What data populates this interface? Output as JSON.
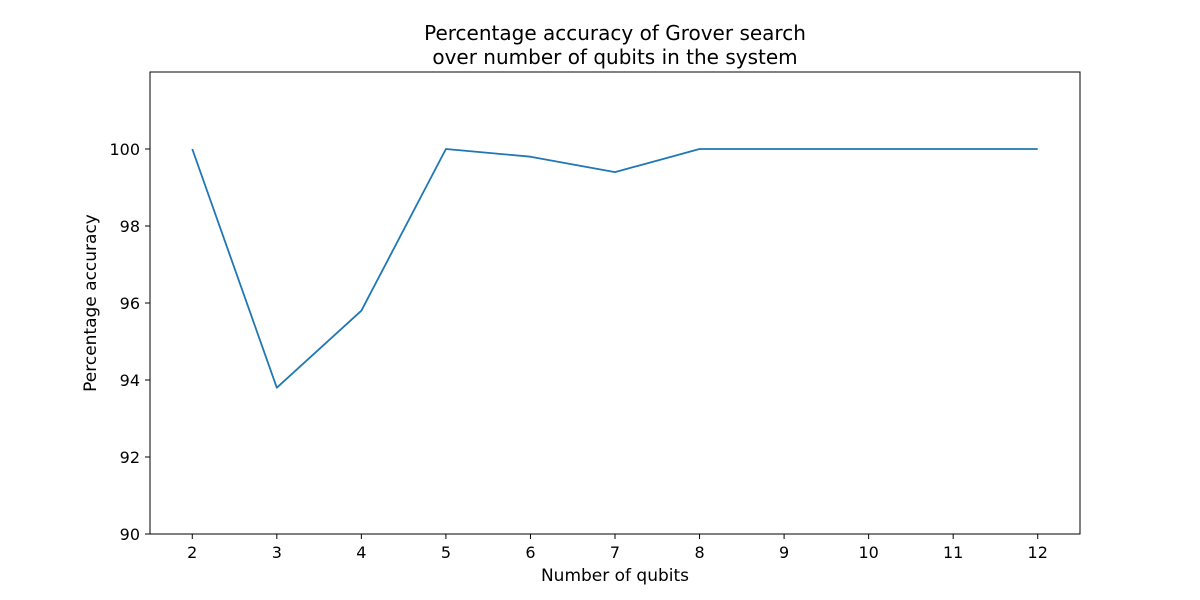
{
  "chart_data": {
    "type": "line",
    "title_lines": [
      "Percentage accuracy of Grover search",
      "over number of qubits in the system"
    ],
    "xlabel": "Number of qubits",
    "ylabel": "Percentage accuracy",
    "x": [
      2,
      3,
      4,
      5,
      6,
      7,
      8,
      9,
      10,
      11,
      12
    ],
    "series": [
      {
        "values": [
          100,
          93.8,
          95.8,
          100,
          99.8,
          99.4,
          100,
          100,
          100,
          100,
          100
        ],
        "color": "#1f77b4"
      }
    ],
    "xlim": [
      1.5,
      12.5
    ],
    "ylim": [
      90,
      102
    ],
    "xticks": [
      2,
      3,
      4,
      5,
      6,
      7,
      8,
      9,
      10,
      11,
      12
    ],
    "yticks": [
      90,
      92,
      94,
      96,
      98,
      100
    ],
    "grid": false,
    "legend": "none"
  }
}
